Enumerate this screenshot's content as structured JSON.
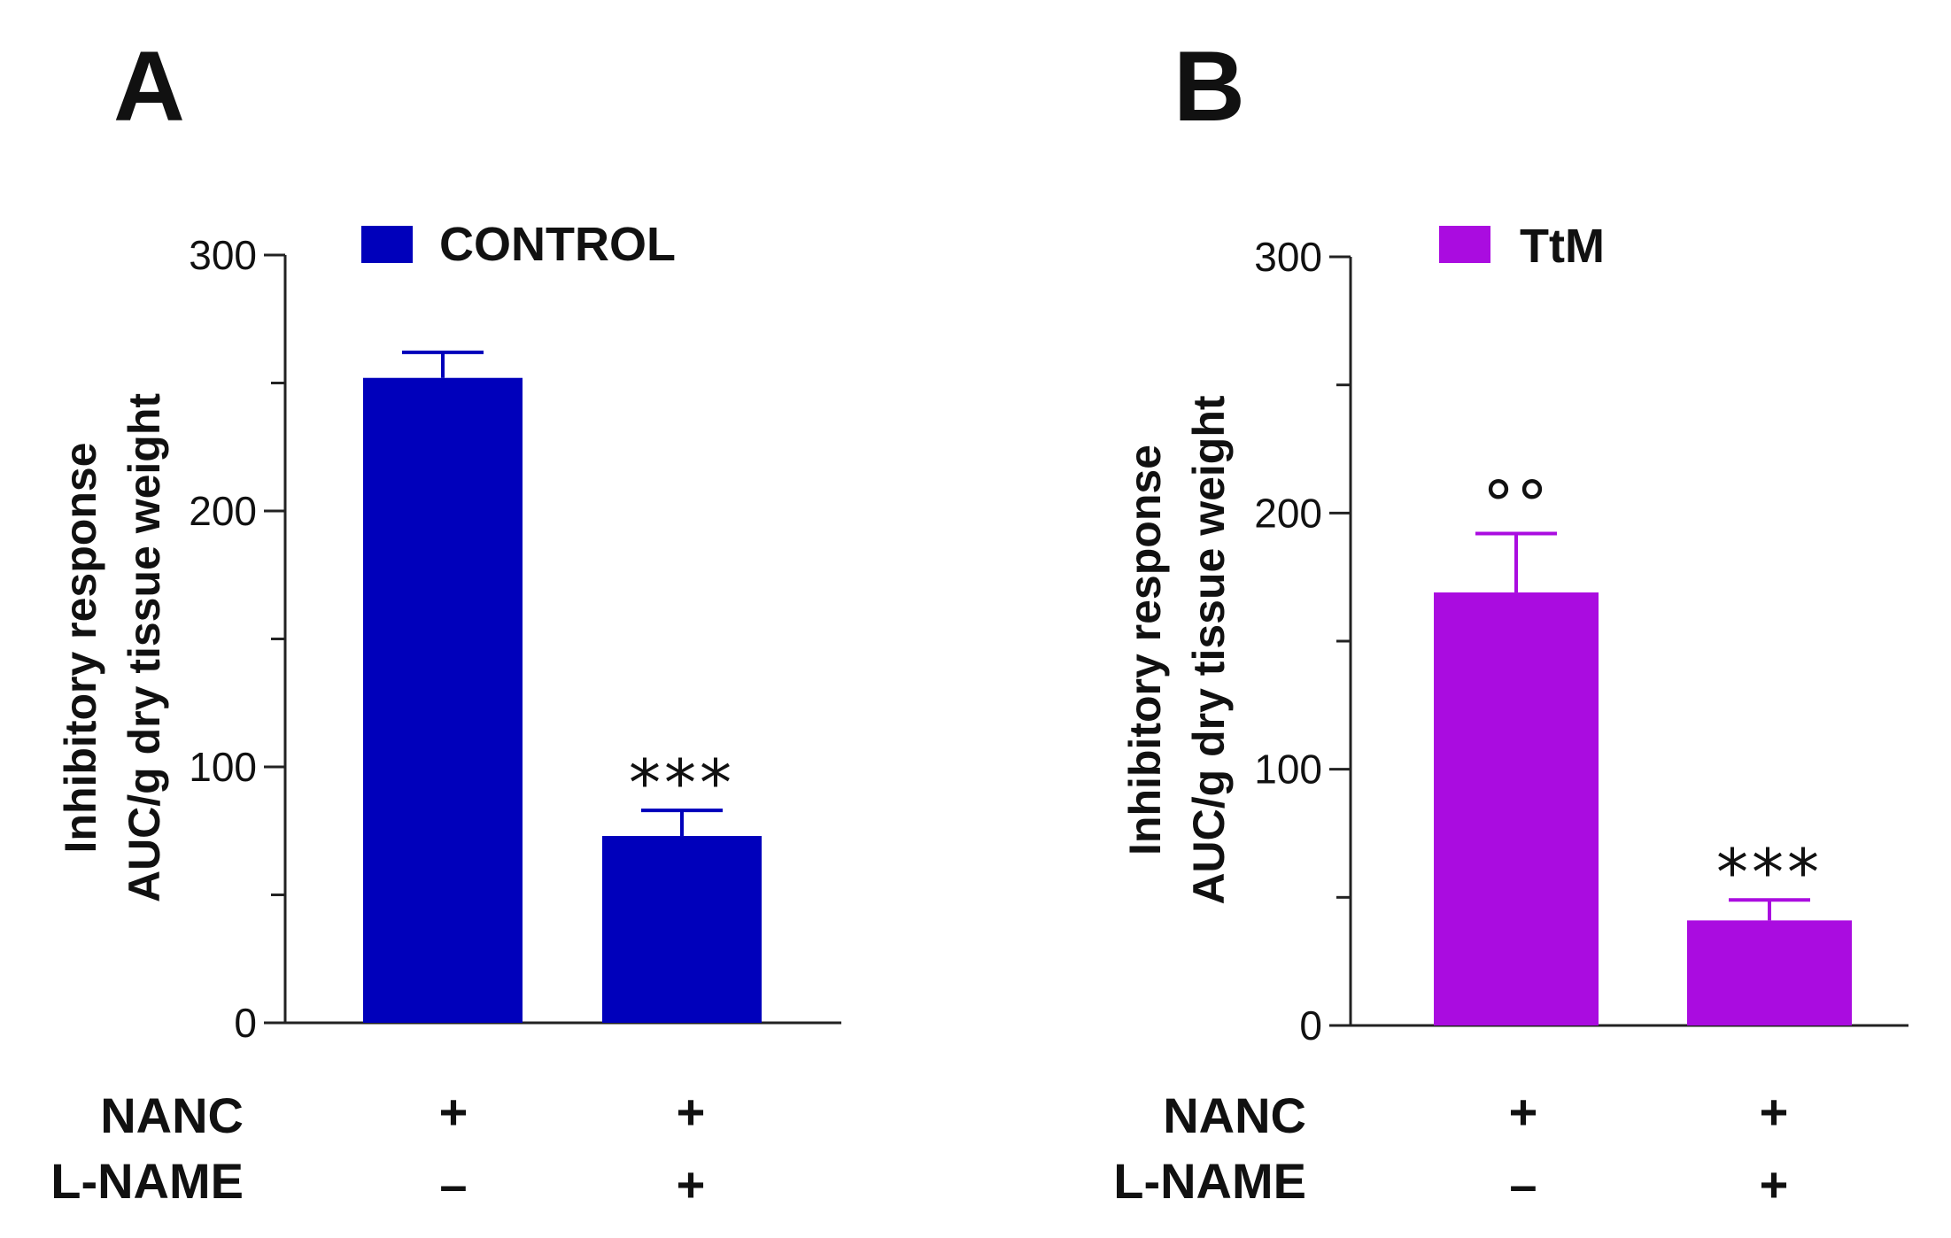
{
  "panels": [
    {
      "letter": "A"
    },
    {
      "letter": "B"
    }
  ],
  "chart_data": [
    {
      "type": "bar",
      "panel": "A",
      "legend": "CONTROL",
      "color": "#0000bb",
      "ylabel_line1": "Inhibitory response",
      "ylabel_line2": "AUC/g dry tissue weight",
      "ylim": [
        0,
        300
      ],
      "yticks": [
        "0",
        "100",
        "200",
        "300"
      ],
      "categories": [
        "NANC",
        "NANC + L-NAME"
      ],
      "values": [
        252,
        73
      ],
      "errors": [
        10,
        10
      ],
      "annotations": [
        "",
        "***"
      ],
      "rows": [
        {
          "label": "NANC",
          "symbols": [
            "+",
            "+"
          ]
        },
        {
          "label": "L-NAME",
          "symbols": [
            "–",
            "+"
          ]
        }
      ]
    },
    {
      "type": "bar",
      "panel": "B",
      "legend": "TtM",
      "color": "#aa0ce0",
      "ylabel_line1": "Inhibitory response",
      "ylabel_line2": "AUC/g dry tissue weight",
      "ylim": [
        0,
        300
      ],
      "yticks": [
        "0",
        "100",
        "200",
        "300"
      ],
      "categories": [
        "NANC",
        "NANC + L-NAME"
      ],
      "values": [
        169,
        41
      ],
      "errors": [
        23,
        8
      ],
      "annotations": [
        "°°",
        "***"
      ],
      "rows": [
        {
          "label": "NANC",
          "symbols": [
            "+",
            "+"
          ]
        },
        {
          "label": "L-NAME",
          "symbols": [
            "–",
            "+"
          ]
        }
      ]
    }
  ]
}
